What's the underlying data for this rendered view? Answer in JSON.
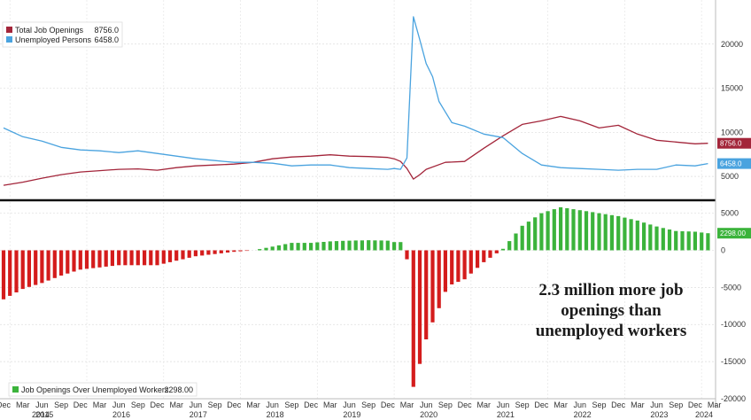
{
  "chart_data": [
    {
      "type": "line",
      "series": [
        {
          "name": "Total Job Openings",
          "color": "#a3253a",
          "last_value": "8756.0",
          "x": [
            "2014-12",
            "2015-03",
            "2015-06",
            "2015-09",
            "2015-12",
            "2016-03",
            "2016-06",
            "2016-09",
            "2016-12",
            "2017-03",
            "2017-06",
            "2017-09",
            "2017-12",
            "2018-03",
            "2018-06",
            "2018-09",
            "2018-12",
            "2019-03",
            "2019-06",
            "2019-09",
            "2019-12",
            "2020-01",
            "2020-02",
            "2020-03",
            "2020-04",
            "2020-05",
            "2020-06",
            "2020-09",
            "2020-12",
            "2021-03",
            "2021-06",
            "2021-09",
            "2021-12",
            "2022-03",
            "2022-06",
            "2022-09",
            "2022-12",
            "2023-03",
            "2023-06",
            "2023-09",
            "2023-12",
            "2024-02"
          ],
          "values": [
            4000,
            4350,
            4800,
            5200,
            5500,
            5650,
            5800,
            5850,
            5700,
            6000,
            6200,
            6300,
            6400,
            6600,
            7000,
            7200,
            7300,
            7450,
            7300,
            7250,
            7150,
            7000,
            6700,
            5900,
            4700,
            5200,
            5800,
            6600,
            6700,
            8200,
            9600,
            10900,
            11300,
            11800,
            11300,
            10500,
            10800,
            9800,
            9100,
            8900,
            8700,
            8756
          ]
        },
        {
          "name": "Unemployed Persons",
          "color": "#4aa3df",
          "last_value": "6458.0",
          "x": [
            "2014-12",
            "2015-03",
            "2015-06",
            "2015-09",
            "2015-12",
            "2016-03",
            "2016-06",
            "2016-09",
            "2016-12",
            "2017-03",
            "2017-06",
            "2017-09",
            "2017-12",
            "2018-03",
            "2018-06",
            "2018-09",
            "2018-12",
            "2019-03",
            "2019-06",
            "2019-09",
            "2019-12",
            "2020-01",
            "2020-02",
            "2020-03",
            "2020-04",
            "2020-05",
            "2020-06",
            "2020-07",
            "2020-08",
            "2020-09",
            "2020-10",
            "2020-12",
            "2021-03",
            "2021-06",
            "2021-09",
            "2021-12",
            "2022-03",
            "2022-06",
            "2022-09",
            "2022-12",
            "2023-03",
            "2023-06",
            "2023-09",
            "2023-12",
            "2024-02"
          ],
          "values": [
            10500,
            9500,
            9000,
            8300,
            8000,
            7900,
            7700,
            7900,
            7600,
            7300,
            7000,
            6800,
            6600,
            6600,
            6500,
            6200,
            6300,
            6300,
            6000,
            5900,
            5800,
            5900,
            5800,
            7100,
            23100,
            20500,
            17800,
            16300,
            13500,
            12300,
            11100,
            10700,
            9800,
            9400,
            7600,
            6300,
            6000,
            5900,
            5800,
            5700,
            5800,
            5800,
            6300,
            6200,
            6458
          ]
        }
      ],
      "ylim": [
        2500,
        25000
      ],
      "yticks": [
        5000,
        10000,
        15000,
        20000
      ],
      "legend": "top-left",
      "grid": true
    },
    {
      "type": "bar",
      "series": [
        {
          "name": "Job Openings Over Unemployed Workers",
          "color_positive": "#3bb33b",
          "color_negative": "#d41c1c",
          "last_value": "2298.00",
          "x": [
            "2014-12",
            "2015-03",
            "2015-06",
            "2015-09",
            "2015-12",
            "2016-03",
            "2016-06",
            "2016-09",
            "2016-12",
            "2017-03",
            "2017-06",
            "2017-09",
            "2017-12",
            "2018-03",
            "2018-06",
            "2018-09",
            "2018-12",
            "2019-03",
            "2019-06",
            "2019-09",
            "2019-12",
            "2020-01",
            "2020-02",
            "2020-03",
            "2020-04",
            "2020-05",
            "2020-06",
            "2020-07",
            "2020-08",
            "2020-09",
            "2020-10",
            "2020-12",
            "2021-03",
            "2021-06",
            "2021-09",
            "2021-12",
            "2022-03",
            "2022-06",
            "2022-09",
            "2022-12",
            "2023-03",
            "2023-06",
            "2023-09",
            "2023-12",
            "2024-02"
          ],
          "values": [
            -6600,
            -5200,
            -4400,
            -3400,
            -2600,
            -2300,
            -2000,
            -2000,
            -2000,
            -1400,
            -800,
            -500,
            -200,
            0,
            500,
            1000,
            1000,
            1200,
            1300,
            1350,
            1300,
            1100,
            1100,
            -1200,
            -18400,
            -15300,
            -12000,
            -9700,
            -7800,
            -5600,
            -4600,
            -3900,
            -1600,
            200,
            3300,
            5000,
            5800,
            5400,
            5000,
            4600,
            4000,
            3200,
            2600,
            2500,
            2298
          ]
        }
      ],
      "ylim": [
        -20000,
        6500
      ],
      "yticks": [
        5000,
        0,
        -5000,
        -10000,
        -15000,
        -20000
      ],
      "legend": "bottom-left",
      "grid": true,
      "annotation": "2.3 million more job openings than unemployed workers"
    }
  ],
  "annotation_lines": [
    "2.3 million more job",
    "openings than",
    "unemployed workers"
  ],
  "x_axis": {
    "months": [
      "Dec",
      "Mar",
      "Jun",
      "Sep",
      "Dec",
      "Mar",
      "Jun",
      "Sep",
      "Dec",
      "Mar",
      "Jun",
      "Sep",
      "Dec",
      "Mar",
      "Jun",
      "Sep",
      "Dec",
      "Mar",
      "Jun",
      "Sep",
      "Dec",
      "Mar",
      "Jun",
      "Sep",
      "Dec",
      "Mar",
      "Jun",
      "Sep",
      "Dec",
      "Mar",
      "Jun",
      "Sep",
      "Dec",
      "Mar",
      "Jun",
      "Sep",
      "Dec",
      "Mar",
      "Jun"
    ],
    "years": [
      "2014",
      "2015",
      "2016",
      "2017",
      "2018",
      "2019",
      "2020",
      "2021",
      "2022",
      "2023",
      "2024"
    ]
  }
}
